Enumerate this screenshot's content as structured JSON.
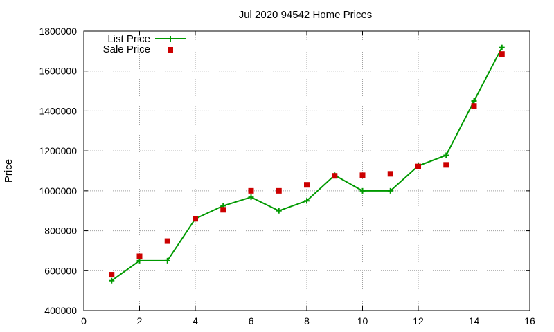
{
  "chart_data": {
    "type": "line",
    "title": "Jul 2020 94542 Home Prices",
    "xlabel": "",
    "ylabel": "Price",
    "xlim": [
      0,
      16
    ],
    "ylim": [
      400000,
      1800000
    ],
    "x_ticks": [
      0,
      2,
      4,
      6,
      8,
      10,
      12,
      14,
      16
    ],
    "y_ticks": [
      400000,
      600000,
      800000,
      1000000,
      1200000,
      1400000,
      1600000,
      1800000
    ],
    "x_tick_labels": [
      "0",
      "2",
      "4",
      "6",
      "8",
      "10",
      "12",
      "14",
      "16"
    ],
    "y_tick_labels": [
      "400000",
      "600000",
      "800000",
      "1000000",
      "1200000",
      "1400000",
      "1600000",
      "1800000"
    ],
    "grid": true,
    "legend_position": "top-left",
    "series": [
      {
        "name": "List Price",
        "style": "line+cross",
        "color": "#009900",
        "x": [
          1,
          2,
          3,
          4,
          5,
          6,
          7,
          8,
          9,
          10,
          11,
          12,
          13,
          14,
          15
        ],
        "y": [
          550000,
          650000,
          650000,
          860000,
          925000,
          968000,
          900000,
          950000,
          1078000,
          1000000,
          1000000,
          1125000,
          1178000,
          1450000,
          1718000
        ]
      },
      {
        "name": "Sale Price",
        "style": "square",
        "color": "#cc0000",
        "x": [
          1,
          2,
          3,
          4,
          5,
          6,
          7,
          8,
          9,
          10,
          11,
          12,
          13,
          14,
          15
        ],
        "y": [
          580000,
          672000,
          748000,
          860000,
          905000,
          1000000,
          1000000,
          1030000,
          1075000,
          1078000,
          1085000,
          1122000,
          1130000,
          1425000,
          1685000
        ]
      }
    ]
  }
}
